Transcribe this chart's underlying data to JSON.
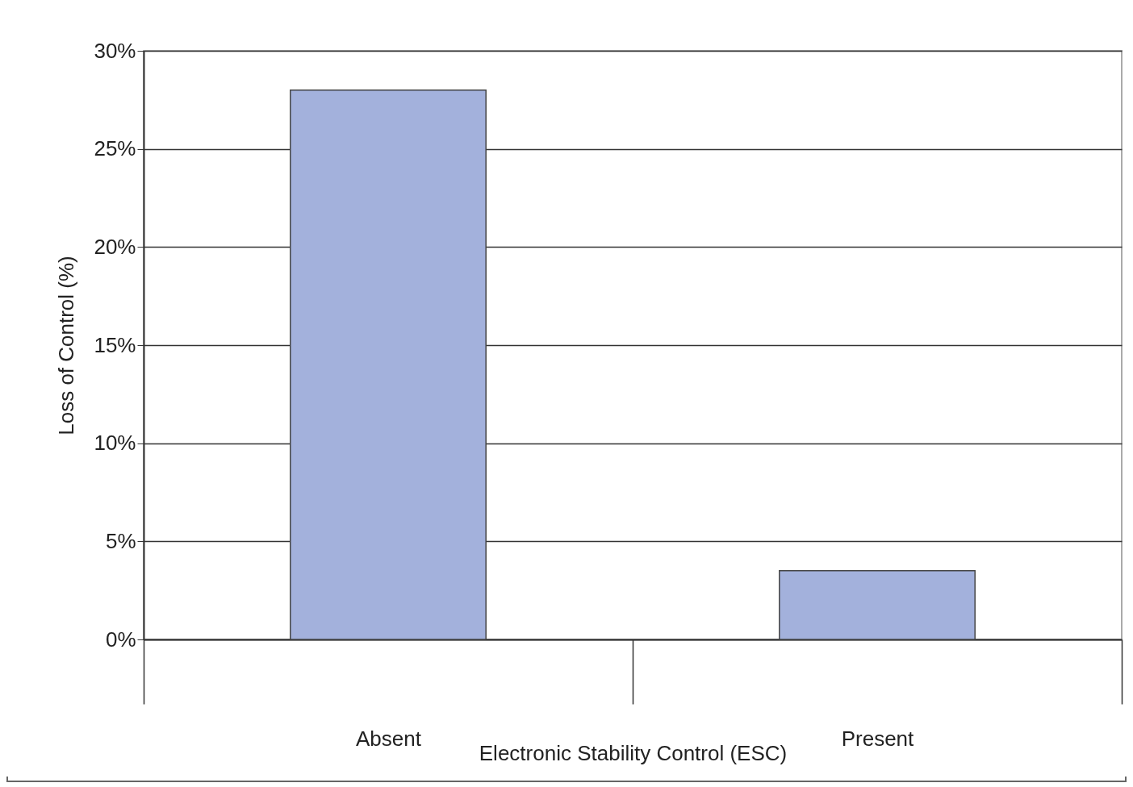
{
  "chart_data": {
    "type": "bar",
    "xlabel": "Electronic Stability Control (ESC)",
    "ylabel": "Loss of Control (%)",
    "categories": [
      "Absent",
      "Present"
    ],
    "values": [
      28,
      3.5
    ],
    "color": "#a3b1dc",
    "ylim": [
      0,
      30
    ],
    "yticks": [
      {
        "value": 0,
        "label": "0%"
      },
      {
        "value": 5,
        "label": "5%"
      },
      {
        "value": 10,
        "label": "10%"
      },
      {
        "value": 15,
        "label": "15%"
      },
      {
        "value": 20,
        "label": "20%"
      },
      {
        "value": 25,
        "label": "25%"
      },
      {
        "value": 30,
        "label": "30%"
      }
    ],
    "grid": "y"
  }
}
